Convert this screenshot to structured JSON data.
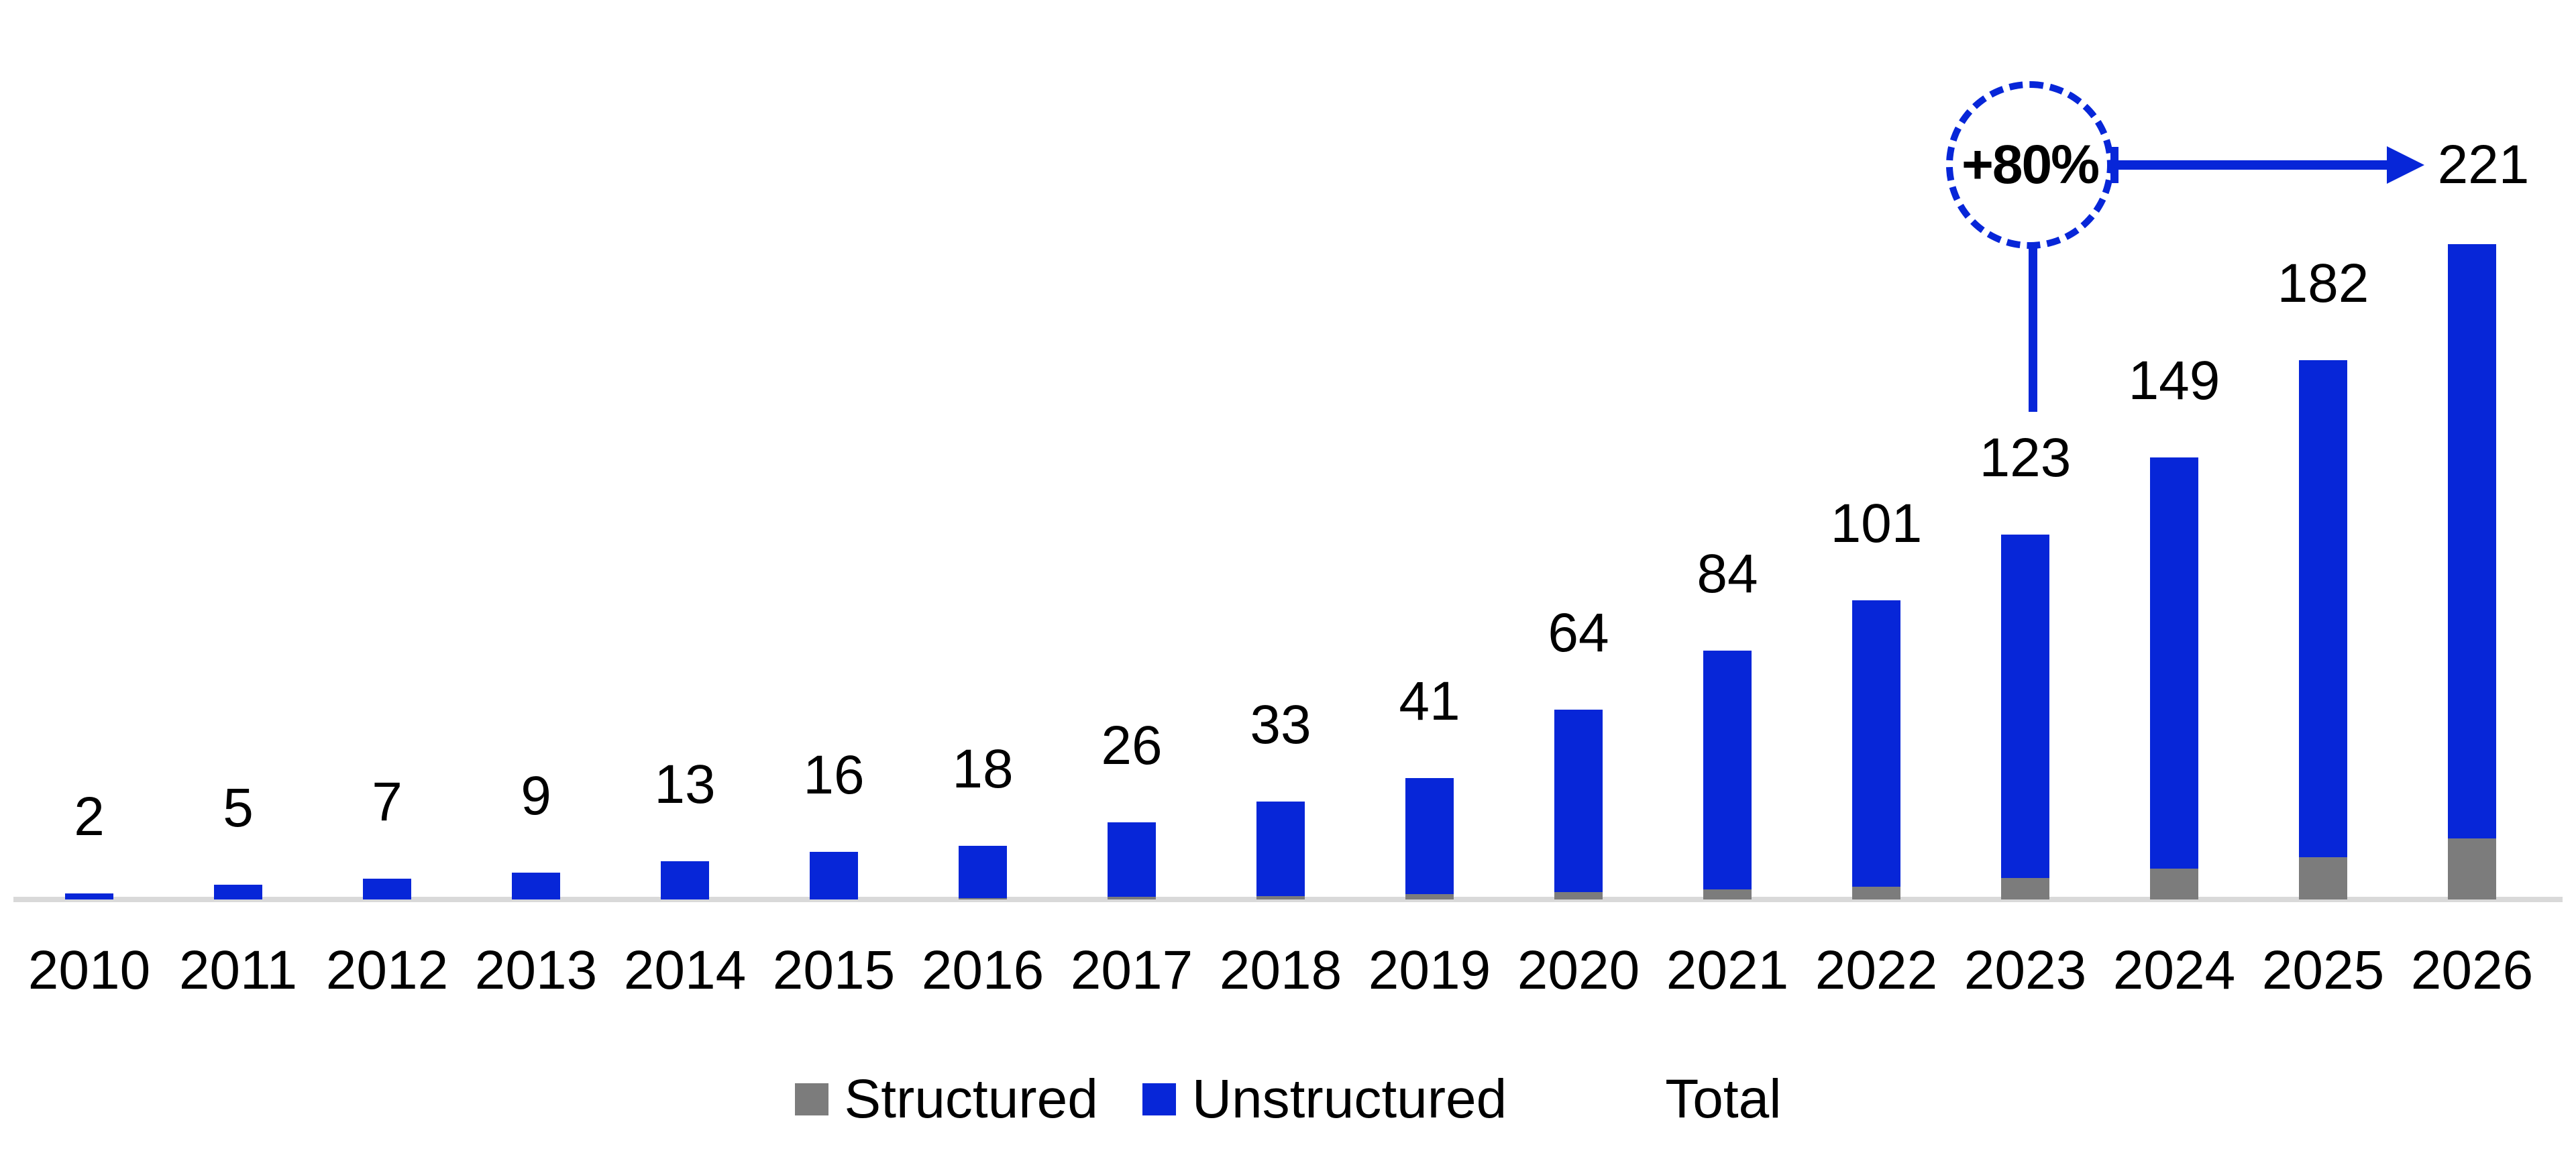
{
  "chart_data": {
    "type": "bar",
    "stacked": true,
    "title": "",
    "xlabel": "",
    "ylabel": "",
    "ylim": [
      0,
      230
    ],
    "grid": false,
    "legend_position": "bottom",
    "categories": [
      "2010",
      "2011",
      "2012",
      "2013",
      "2014",
      "2015",
      "2016",
      "2017",
      "2018",
      "2019",
      "2020",
      "2021",
      "2022",
      "2023",
      "2024",
      "2025",
      "2026"
    ],
    "series": [
      {
        "name": "Structured",
        "color": "#7c7c7c",
        "values": [
          0,
          0,
          0,
          0,
          0,
          0,
          0.5,
          0.8,
          1.2,
          1.8,
          2.4,
          3.3,
          4.2,
          7.2,
          10.4,
          14.3,
          20.6
        ]
      },
      {
        "name": "Unstructured",
        "color": "#0726d8",
        "values": [
          2,
          5,
          7,
          9,
          13,
          16,
          17.5,
          25.2,
          31.8,
          39.2,
          61.6,
          80.7,
          96.8,
          115.8,
          138.6,
          167.7,
          200.4
        ]
      }
    ],
    "totals": [
      2,
      5,
      7,
      9,
      13,
      16,
      18,
      26,
      33,
      41,
      64,
      84,
      101,
      123,
      149,
      182,
      221
    ],
    "total_labels": [
      "2",
      "5",
      "7",
      "9",
      "13",
      "16",
      "18",
      "26",
      "33",
      "41",
      "64",
      "84",
      "101",
      "123",
      "149",
      "182",
      "221"
    ],
    "annotation": {
      "badge": "+80%",
      "from_year": "2023",
      "to_year": "2026",
      "end_value": "221"
    }
  },
  "legend": {
    "structured": "Structured",
    "unstructured": "Unstructured",
    "total": "Total"
  },
  "annotation": {
    "growth_label": "+80%",
    "end_value_label": "221"
  },
  "colors": {
    "structured": "#7c7c7c",
    "unstructured": "#0726d8",
    "axis_line": "#d9d9d9",
    "text": "#000000",
    "annotation_blue": "#0726d8"
  }
}
